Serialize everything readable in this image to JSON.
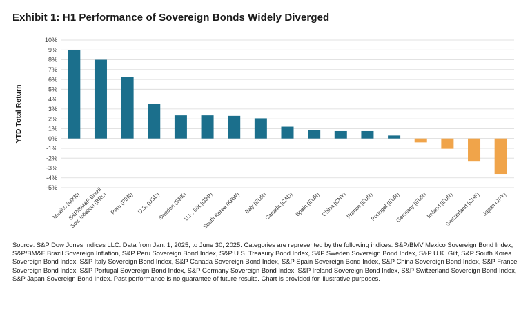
{
  "title": "Exhibit 1: H1 Performance of Sovereign Bonds Widely Diverged",
  "source": "Source: S&P Dow Jones Indices LLC. Data from Jan. 1, 2025, to June 30, 2025. Categories are represented by the following indices: S&P/BMV Mexico Sovereign Bond Index, S&P/BM&F Brazil Sovereign Inflation, S&P Peru Sovereign Bond Index, S&P U.S. Treasury Bond Index, S&P Sweden Sovereign Bond Index, S&P U.K. Gilt, S&P South Korea Sovereign Bond Index, S&P Italy Sovereign Bond Index, S&P Canada Sovereign Bond Index, S&P Spain Sovereign Bond Index, S&P China Sovereign Bond Index, S&P France Sovereign Bond Index, S&P Portugal Sovereign Bond Index, S&P Germany Sovereign Bond Index, S&P Ireland Sovereign Bond Index, S&P Switzerland Sovereign Bond Index, S&P Japan Sovereign Bond Index. Past performance is no guarantee of future results. Chart is provided for illustrative purposes.",
  "colors": {
    "positive": "#1b6f8c",
    "negative": "#f0a44a",
    "grid": "#d9d9d9",
    "text": "#404040"
  },
  "chart_data": {
    "type": "bar",
    "title": "Exhibit 1: H1 Performance of Sovereign Bonds Widely Diverged",
    "xlabel": "",
    "ylabel": "YTD Total Return",
    "ylim": [
      -5,
      10
    ],
    "yticks": [
      10,
      9,
      8,
      7,
      6,
      5,
      4,
      3,
      2,
      1,
      0,
      -1,
      -2,
      -3,
      -4,
      -5
    ],
    "ytick_labels": [
      "10%",
      "9%",
      "8%",
      "7%",
      "6%",
      "5%",
      "4%",
      "3%",
      "2%",
      "1%",
      "0%",
      "-1%",
      "-2%",
      "-3%",
      "-4%",
      "-5%"
    ],
    "grid": true,
    "categories": [
      "Mexico (MXN)",
      "S&P/BM&F Brazil Sov. Inflation (BRL)",
      "Peru (PEN)",
      "U.S. (USD)",
      "Sweden (SEK)",
      "U.K. Gilt (GBP)",
      "South Korea (KRW)",
      "Italy (EUR)",
      "Canada (CAD)",
      "Spain (EUR)",
      "China (CNY)",
      "France (EUR)",
      "Portugal (EUR)",
      "Germany (EUR)",
      "Ireland (EUR)",
      "Switzerland (CHF)",
      "Japan (JPY)"
    ],
    "category_lines": [
      [
        "Mexico (MXN)"
      ],
      [
        "S&P/BM&F Brazil",
        "Sov. Inflation (BRL)"
      ],
      [
        "Peru (PEN)"
      ],
      [
        "U.S. (USD)"
      ],
      [
        "Sweden (SEK)"
      ],
      [
        "U.K. Gilt (GBP)"
      ],
      [
        "South Korea (KRW)"
      ],
      [
        "Italy (EUR)"
      ],
      [
        "Canada (CAD)"
      ],
      [
        "Spain (EUR)"
      ],
      [
        "China (CNY)"
      ],
      [
        "France (EUR)"
      ],
      [
        "Portugal (EUR)"
      ],
      [
        "Germany (EUR)"
      ],
      [
        "Ireland (EUR)"
      ],
      [
        "Switzerland (CHF)"
      ],
      [
        "Japan (JPY)"
      ]
    ],
    "values": [
      8.95,
      8.0,
      6.25,
      3.5,
      2.35,
      2.35,
      2.3,
      2.05,
      1.2,
      0.85,
      0.75,
      0.75,
      0.3,
      -0.4,
      -1.05,
      -2.35,
      -3.6
    ]
  }
}
